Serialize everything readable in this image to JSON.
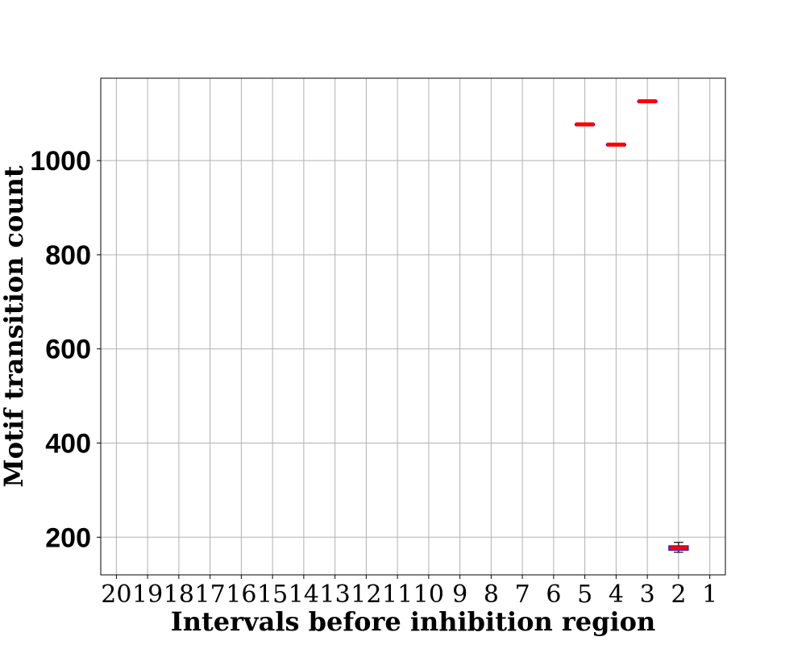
{
  "chart_data": {
    "type": "box",
    "title": "",
    "xlabel": "Intervals before inhibition region",
    "ylabel": "Motif transition count",
    "categories": [
      "20",
      "19",
      "18",
      "17",
      "16",
      "15",
      "14",
      "13",
      "12",
      "11",
      "10",
      "9",
      "8",
      "7",
      "6",
      "5",
      "4",
      "3",
      "2",
      "1"
    ],
    "ylim": [
      120,
      1175
    ],
    "yticks": [
      200,
      400,
      600,
      800,
      1000
    ],
    "grid": true,
    "median_color": "#ff0000",
    "box_color": "#0000ff",
    "boxes": [
      {
        "category": "5",
        "min": 1077,
        "q1": 1077,
        "median": 1077,
        "q3": 1077,
        "max": 1077
      },
      {
        "category": "4",
        "min": 1034,
        "q1": 1034,
        "median": 1034,
        "q3": 1034,
        "max": 1034
      },
      {
        "category": "3",
        "min": 1126,
        "q1": 1126,
        "median": 1126,
        "q3": 1126,
        "max": 1126
      },
      {
        "category": "2",
        "min": 168,
        "q1": 173,
        "median": 177,
        "q3": 181,
        "max": 189
      }
    ]
  }
}
